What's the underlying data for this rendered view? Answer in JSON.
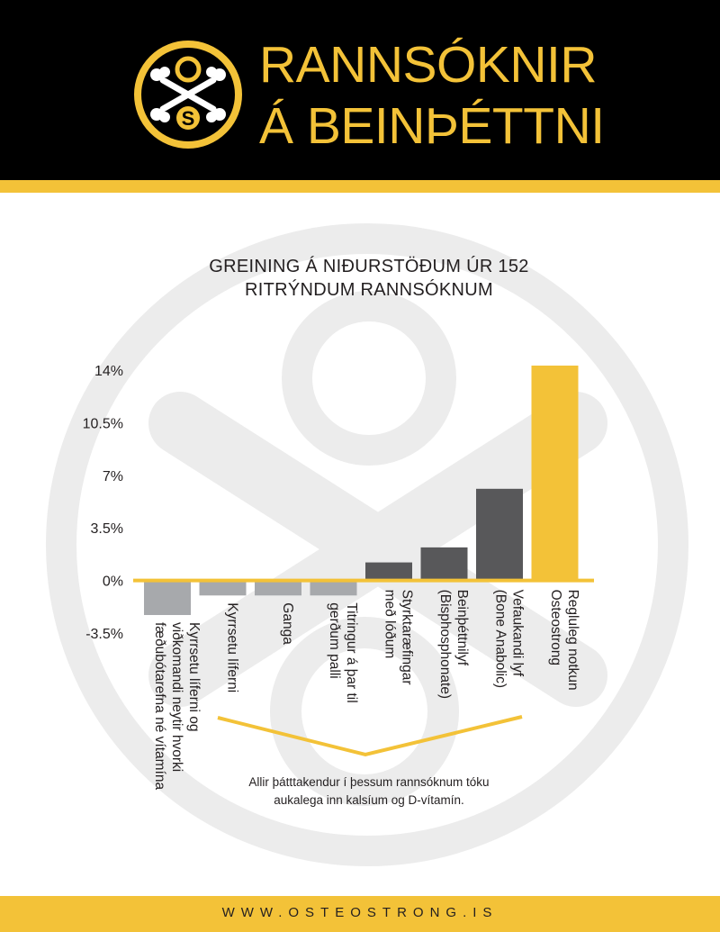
{
  "header": {
    "title_line_1": "RANNSÓKNIR",
    "title_line_2": "Á BEINÞÉTTNI",
    "logo": {
      "icon": "osteostrong-logo-icon",
      "letter_top": "O",
      "letter_bottom": "S"
    }
  },
  "footnote": {
    "line_1": "Allir þátttakendur í þessum rannsóknum tóku",
    "line_2": "aukalega inn kalsíum og D-vítamín."
  },
  "footer": {
    "url": "WWW.OSTEOSTRONG.IS"
  },
  "colors": {
    "brand_yellow": "#f3c238",
    "header_black": "#000000",
    "bar_dark_gray": "#58585a",
    "bar_light_gray": "#a7a9ac",
    "watermark": "#ececec"
  },
  "chart_data": {
    "type": "bar",
    "title_lines": [
      "GREINING Á NIÐURSTÖÐUM ÚR 152",
      "RITRÝNDUM RANNSÓKNUM"
    ],
    "ylim": [
      -3.5,
      14
    ],
    "yticks": [
      {
        "value": 14,
        "label": "14%"
      },
      {
        "value": 10.5,
        "label": "10.5%"
      },
      {
        "value": 7,
        "label": "7%"
      },
      {
        "value": 3.5,
        "label": "3.5%"
      },
      {
        "value": 0,
        "label": "0%"
      },
      {
        "value": -3.5,
        "label": "-3.5%"
      }
    ],
    "categories": [
      {
        "label_lines": [
          "Kyrrsetu líferni og",
          "viðkomandi neytir hvorki",
          "fæðubótarefna né vítamína"
        ],
        "value": -2.3,
        "color": "#a7a9ac"
      },
      {
        "label_lines": [
          "Kyrrsetu líferni"
        ],
        "value": -1.0,
        "color": "#a7a9ac"
      },
      {
        "label_lines": [
          "Ganga"
        ],
        "value": -1.0,
        "color": "#a7a9ac"
      },
      {
        "label_lines": [
          "Titringur á þar til",
          "gerðum palli"
        ],
        "value": -1.0,
        "color": "#a7a9ac"
      },
      {
        "label_lines": [
          "Styrktaræfingar",
          "með lóðum"
        ],
        "value": 1.2,
        "color": "#58585a"
      },
      {
        "label_lines": [
          "Beinþéttnilyf",
          "(Bisphosphonate)"
        ],
        "value": 2.2,
        "color": "#58585a"
      },
      {
        "label_lines": [
          "Vefaukandi lyf",
          "(Bone Anabolic)"
        ],
        "value": 6.1,
        "color": "#58585a"
      },
      {
        "label_lines": [
          "Regluleg notkun",
          "Osteostrong"
        ],
        "value": 14.3,
        "color": "#f3c238"
      }
    ]
  }
}
